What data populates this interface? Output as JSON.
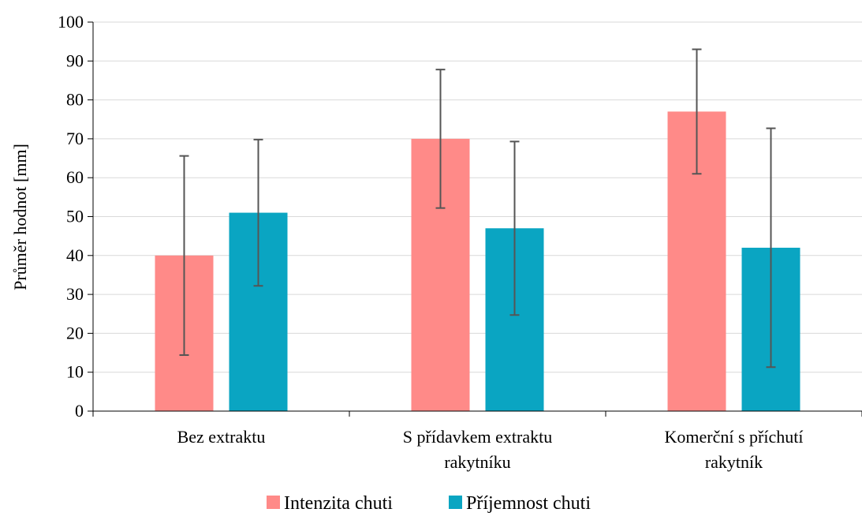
{
  "chart_data": {
    "type": "bar",
    "title": "",
    "xlabel": "",
    "ylabel": "Průměr hodnot [mm]",
    "ylim": [
      0,
      100
    ],
    "yticks": [
      0,
      10,
      20,
      30,
      40,
      50,
      60,
      70,
      80,
      90,
      100
    ],
    "grid": true,
    "legend_position": "bottom",
    "categories": [
      [
        "Bez extraktu"
      ],
      [
        "S přídavkem extraktu",
        "rakytníku"
      ],
      [
        "Komerční s příchutí",
        "rakytník"
      ]
    ],
    "series": [
      {
        "name": "Intenzita chuti",
        "color": "#FF8A88",
        "values": [
          40,
          70,
          77
        ],
        "error_low": [
          14.4,
          52.2,
          61.0
        ],
        "error_high": [
          65.6,
          87.8,
          93.0
        ]
      },
      {
        "name": "Příjemnost chuti",
        "color": "#0AA5C2",
        "values": [
          51,
          47,
          42
        ],
        "error_low": [
          32.2,
          24.7,
          11.3
        ],
        "error_high": [
          69.8,
          69.3,
          72.7
        ]
      }
    ]
  }
}
